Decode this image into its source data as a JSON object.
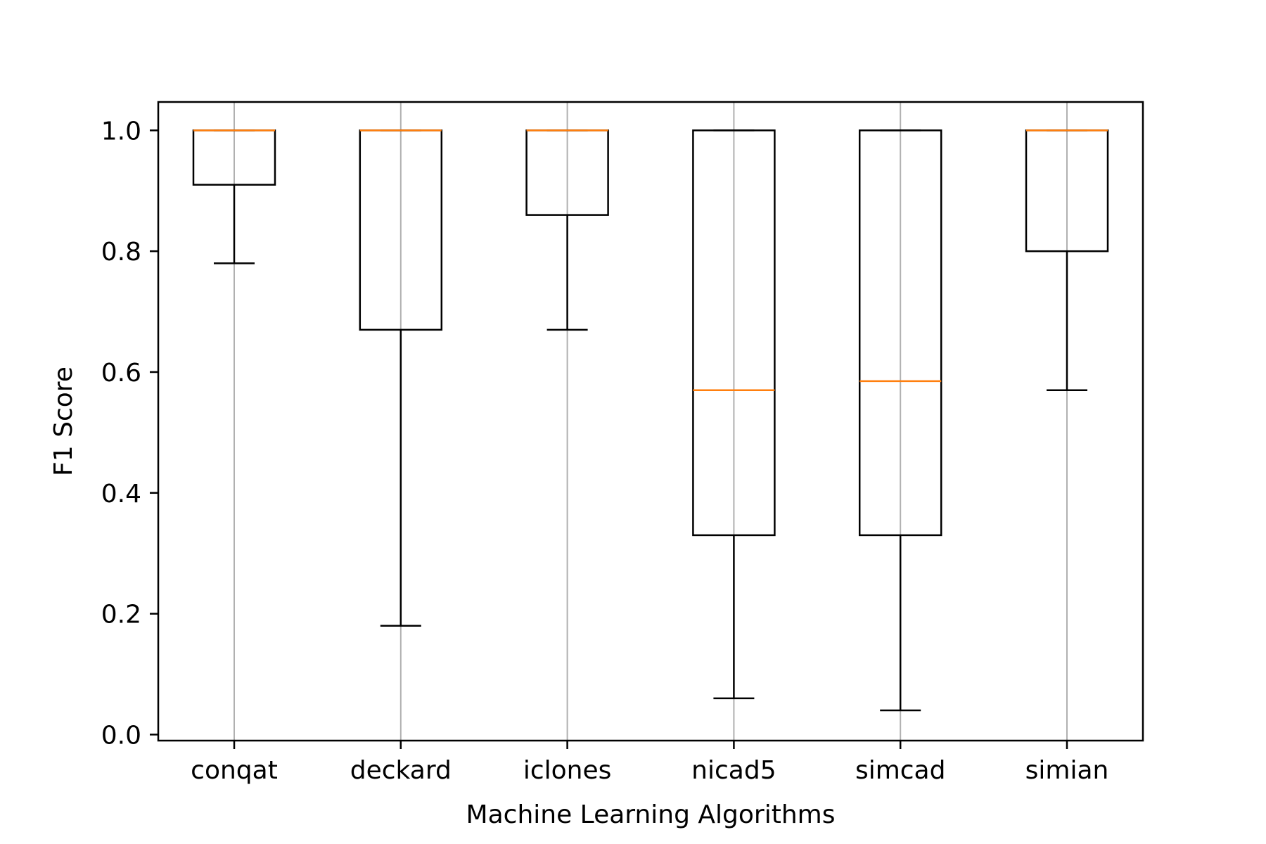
{
  "chart_data": {
    "type": "box",
    "xlabel": "Machine Learning Algorithms",
    "ylabel": "F1 Score",
    "ylim": [
      -0.01,
      1.047
    ],
    "yticks": [
      0.0,
      0.2,
      0.4,
      0.6,
      0.8,
      1.0
    ],
    "ytick_labels": [
      "0.0",
      "0.2",
      "0.4",
      "0.6",
      "0.8",
      "1.0"
    ],
    "grid": "vertical",
    "colors": {
      "box": "#000000",
      "median": "#ff7f0e",
      "grid": "#b0b0b0"
    },
    "categories": [
      "conqat",
      "deckard",
      "iclones",
      "nicad5",
      "simcad",
      "simian"
    ],
    "boxes": [
      {
        "label": "conqat",
        "whisker_low": 0.78,
        "q1": 0.91,
        "median": 1.0,
        "q3": 1.0,
        "whisker_high": 1.0
      },
      {
        "label": "deckard",
        "whisker_low": 0.18,
        "q1": 0.67,
        "median": 1.0,
        "q3": 1.0,
        "whisker_high": 1.0
      },
      {
        "label": "iclones",
        "whisker_low": 0.67,
        "q1": 0.86,
        "median": 1.0,
        "q3": 1.0,
        "whisker_high": 1.0
      },
      {
        "label": "nicad5",
        "whisker_low": 0.06,
        "q1": 0.33,
        "median": 0.57,
        "q3": 1.0,
        "whisker_high": 1.0
      },
      {
        "label": "simcad",
        "whisker_low": 0.04,
        "q1": 0.33,
        "median": 0.585,
        "q3": 1.0,
        "whisker_high": 1.0
      },
      {
        "label": "simian",
        "whisker_low": 0.57,
        "q1": 0.8,
        "median": 1.0,
        "q3": 1.0,
        "whisker_high": 1.0
      }
    ]
  }
}
